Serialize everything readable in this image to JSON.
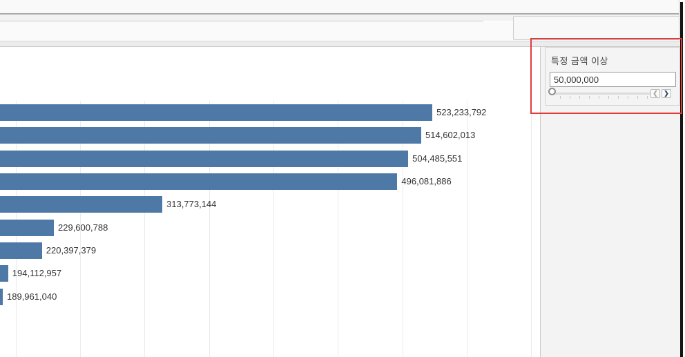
{
  "filter_panel": {
    "title": "특정 금액 이상",
    "input_value": "50,000,000",
    "icons": {
      "spin_left": "❮",
      "spin_right": "❯"
    }
  },
  "annotation": {
    "highlight_color": "#e23b3b"
  },
  "chart_data": {
    "type": "bar",
    "orientation": "horizontal",
    "title": "",
    "bar_color": "#4e79a7",
    "values": [
      523233792,
      514602013,
      504485551,
      496081886,
      313773144,
      229600788,
      220397379,
      194112957,
      189961040
    ],
    "data_labels": [
      "523,233,792",
      "514,602,013",
      "504,485,551",
      "496,081,886",
      "313,773,144",
      "229,600,788",
      "220,397,379",
      "194,112,957",
      "189,961,040"
    ],
    "categories_visible": false,
    "axis": {
      "clipped_left": true,
      "visible_range": [
        187800000,
        606750000
      ],
      "gridline_step": 50000000,
      "gridline_values": [
        200000000,
        250000000,
        300000000,
        350000000,
        400000000,
        450000000,
        500000000,
        550000000,
        600000000
      ],
      "grid": true
    }
  }
}
